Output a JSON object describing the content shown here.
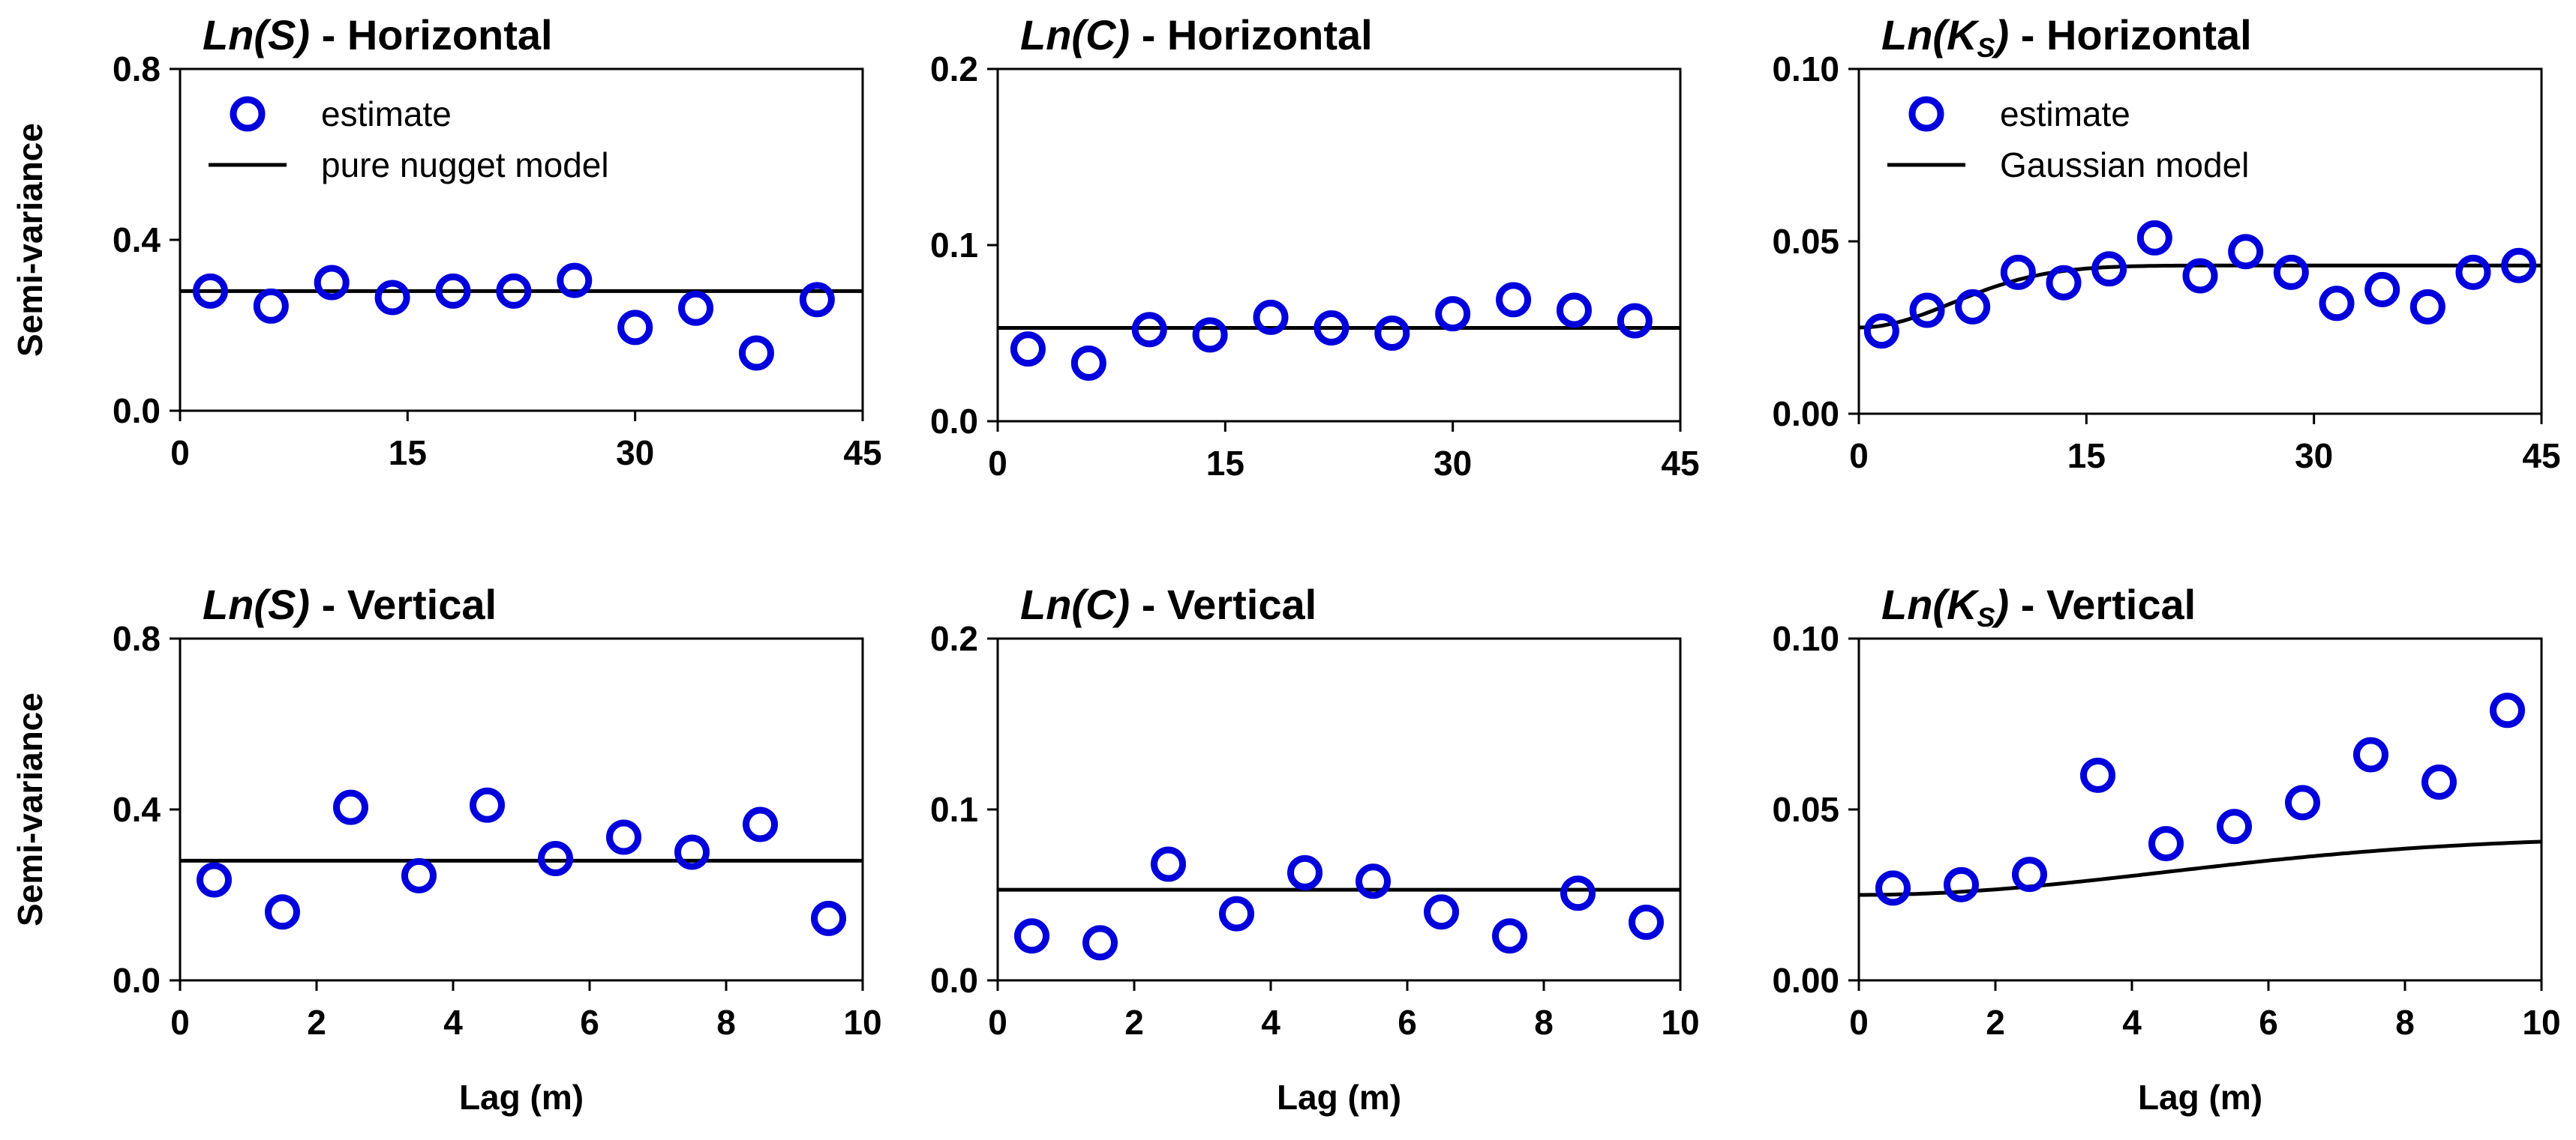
{
  "chart_data": [
    {
      "type": "scatter",
      "title_var": "Ln(S)",
      "title_rest": " - Horizontal",
      "ylabel": "Semi-variance",
      "xlabel": "",
      "xlim": [
        0,
        45
      ],
      "ylim": [
        0,
        0.8
      ],
      "xticks": [
        "0",
        "15",
        "30",
        "45"
      ],
      "yticks": [
        "0.0",
        "0.4",
        "0.8"
      ],
      "marker_color": "#0000dd",
      "legend": {
        "estimate_label": "estimate",
        "model_label": "pure nugget model"
      },
      "estimate": {
        "x": [
          2,
          6,
          10,
          14,
          18,
          22,
          26,
          30,
          34,
          38,
          42
        ],
        "y": [
          0.28,
          0.245,
          0.3,
          0.265,
          0.28,
          0.28,
          0.305,
          0.195,
          0.24,
          0.135,
          0.26
        ]
      },
      "model": {
        "type": "nugget",
        "value": 0.28
      }
    },
    {
      "type": "scatter",
      "title_var": "Ln(C)",
      "title_rest": " - Horizontal",
      "ylabel": "",
      "xlabel": "",
      "xlim": [
        0,
        45
      ],
      "ylim": [
        0,
        0.2
      ],
      "xticks": [
        "0",
        "15",
        "30",
        "45"
      ],
      "yticks": [
        "0.0",
        "0.1",
        "0.2"
      ],
      "marker_color": "#0000dd",
      "estimate": {
        "x": [
          2,
          6,
          10,
          14,
          18,
          22,
          26,
          30,
          34,
          38,
          42
        ],
        "y": [
          0.041,
          0.033,
          0.052,
          0.049,
          0.059,
          0.053,
          0.05,
          0.061,
          0.069,
          0.063,
          0.057
        ]
      },
      "model": {
        "type": "nugget",
        "value": 0.053
      }
    },
    {
      "type": "scatter",
      "title_var": "Ln(K",
      "title_sub": "S",
      "title_close": ")",
      "title_rest": " - Horizontal",
      "ylabel": "",
      "xlabel": "",
      "xlim": [
        0,
        45
      ],
      "ylim": [
        0,
        0.1
      ],
      "xticks": [
        "0",
        "15",
        "30",
        "45"
      ],
      "yticks": [
        "0.00",
        "0.05",
        "0.10"
      ],
      "marker_color": "#0000dd",
      "legend": {
        "estimate_label": "estimate",
        "model_label": "Gaussian model"
      },
      "estimate": {
        "x": [
          1.5,
          4.5,
          7.5,
          10.5,
          13.5,
          16.5,
          19.5,
          22.5,
          25.5,
          28.5,
          31.5,
          34.5,
          37.5,
          40.5,
          43.5
        ],
        "y": [
          0.024,
          0.03,
          0.031,
          0.041,
          0.038,
          0.042,
          0.051,
          0.04,
          0.047,
          0.041,
          0.032,
          0.036,
          0.031,
          0.041,
          0.043
        ]
      },
      "model": {
        "type": "gaussian",
        "nugget": 0.025,
        "sill": 0.043,
        "range": 15
      }
    },
    {
      "type": "scatter",
      "title_var": "Ln(S)",
      "title_rest": " - Vertical",
      "ylabel": "Semi-variance",
      "xlabel": "Lag (m)",
      "xlim": [
        0,
        10
      ],
      "ylim": [
        0,
        0.8
      ],
      "xticks": [
        "0",
        "2",
        "4",
        "6",
        "8",
        "10"
      ],
      "yticks": [
        "0.0",
        "0.4",
        "0.8"
      ],
      "marker_color": "#0000dd",
      "estimate": {
        "x": [
          0.5,
          1.5,
          2.5,
          3.5,
          4.5,
          5.5,
          6.5,
          7.5,
          8.5,
          9.5
        ],
        "y": [
          0.235,
          0.16,
          0.405,
          0.245,
          0.41,
          0.285,
          0.335,
          0.3,
          0.365,
          0.145
        ]
      },
      "model": {
        "type": "nugget",
        "value": 0.28
      }
    },
    {
      "type": "scatter",
      "title_var": "Ln(C)",
      "title_rest": " - Vertical",
      "ylabel": "",
      "xlabel": "Lag (m)",
      "xlim": [
        0,
        10
      ],
      "ylim": [
        0,
        0.2
      ],
      "xticks": [
        "0",
        "2",
        "4",
        "6",
        "8",
        "10"
      ],
      "yticks": [
        "0.0",
        "0.1",
        "0.2"
      ],
      "marker_color": "#0000dd",
      "estimate": {
        "x": [
          0.5,
          1.5,
          2.5,
          3.5,
          4.5,
          5.5,
          6.5,
          7.5,
          8.5,
          9.5
        ],
        "y": [
          0.026,
          0.022,
          0.068,
          0.039,
          0.063,
          0.058,
          0.04,
          0.026,
          0.051,
          0.034
        ]
      },
      "model": {
        "type": "nugget",
        "value": 0.053
      }
    },
    {
      "type": "scatter",
      "title_var": "Ln(K",
      "title_sub": "S",
      "title_close": ")",
      "title_rest": " - Vertical",
      "ylabel": "",
      "xlabel": "Lag (m)",
      "xlim": [
        0,
        10
      ],
      "ylim": [
        0,
        0.1
      ],
      "xticks": [
        "0",
        "2",
        "4",
        "6",
        "8",
        "10"
      ],
      "yticks": [
        "0.00",
        "0.05",
        "0.10"
      ],
      "marker_color": "#0000dd",
      "estimate": {
        "x": [
          0.5,
          1.5,
          2.5,
          3.5,
          4.5,
          5.5,
          6.5,
          7.5,
          8.5,
          9.5
        ],
        "y": [
          0.027,
          0.028,
          0.031,
          0.06,
          0.04,
          0.045,
          0.052,
          0.066,
          0.058,
          0.079
        ]
      },
      "model": {
        "type": "gaussian",
        "nugget": 0.025,
        "sill": 0.042,
        "range": 11
      }
    }
  ]
}
